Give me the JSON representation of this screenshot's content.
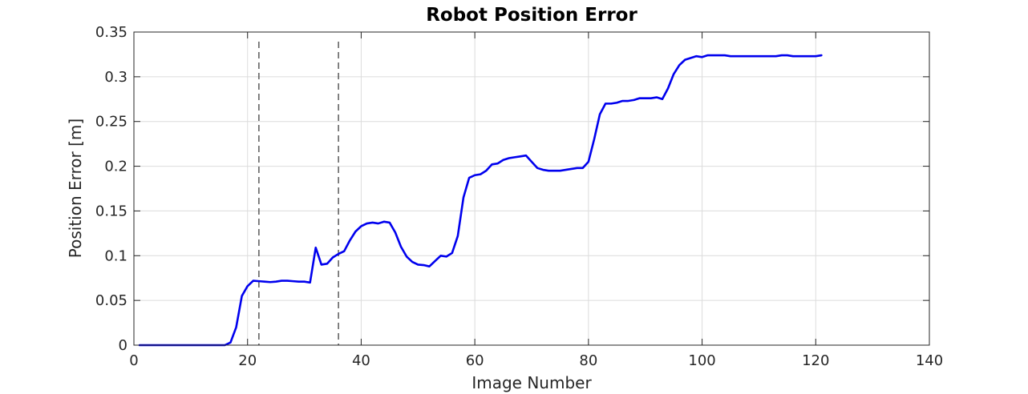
{
  "chart_data": {
    "type": "line",
    "title": "Robot Position Error",
    "xlabel": "Image Number",
    "ylabel": "Position Error [m]",
    "xlim": [
      0,
      140
    ],
    "ylim": [
      0,
      0.35
    ],
    "xticks": [
      0,
      20,
      40,
      60,
      80,
      100,
      120,
      140
    ],
    "yticks": [
      0,
      0.05,
      0.1,
      0.15,
      0.2,
      0.25,
      0.3,
      0.35
    ],
    "xtick_labels": [
      "0",
      "20",
      "40",
      "60",
      "80",
      "100",
      "120",
      "140"
    ],
    "ytick_labels": [
      "0",
      "0.05",
      "0.1",
      "0.15",
      "0.2",
      "0.25",
      "0.3",
      "0.35"
    ],
    "grid": true,
    "series": [
      {
        "color": "#0000ee",
        "x": [
          1,
          2,
          3,
          4,
          5,
          6,
          7,
          8,
          9,
          10,
          11,
          12,
          13,
          14,
          15,
          16,
          17,
          18,
          19,
          20,
          21,
          22,
          23,
          24,
          25,
          26,
          27,
          28,
          29,
          30,
          31,
          32,
          33,
          34,
          35,
          36,
          37,
          38,
          39,
          40,
          41,
          42,
          43,
          44,
          45,
          46,
          47,
          48,
          49,
          50,
          51,
          52,
          53,
          54,
          55,
          56,
          57,
          58,
          59,
          60,
          61,
          62,
          63,
          64,
          65,
          66,
          67,
          68,
          69,
          70,
          71,
          72,
          73,
          74,
          75,
          76,
          77,
          78,
          79,
          80,
          81,
          82,
          83,
          84,
          85,
          86,
          87,
          88,
          89,
          90,
          91,
          92,
          93,
          94,
          95,
          96,
          97,
          98,
          99,
          100,
          101,
          102,
          103,
          104,
          105,
          106,
          107,
          108,
          109,
          110,
          111,
          112,
          113,
          114,
          115,
          116,
          117,
          118,
          119,
          120,
          121
        ],
        "y": [
          0,
          0,
          0,
          0,
          0,
          0,
          0,
          0,
          0,
          0,
          0,
          0,
          0,
          0,
          0,
          0,
          0.003,
          0.02,
          0.055,
          0.066,
          0.072,
          0.0715,
          0.071,
          0.0705,
          0.071,
          0.072,
          0.072,
          0.0715,
          0.071,
          0.071,
          0.07,
          0.109,
          0.09,
          0.091,
          0.098,
          0.102,
          0.105,
          0.117,
          0.127,
          0.133,
          0.136,
          0.137,
          0.136,
          0.138,
          0.137,
          0.126,
          0.11,
          0.099,
          0.093,
          0.09,
          0.0895,
          0.088,
          0.094,
          0.1,
          0.099,
          0.103,
          0.122,
          0.165,
          0.187,
          0.19,
          0.191,
          0.195,
          0.202,
          0.203,
          0.207,
          0.209,
          0.21,
          0.211,
          0.212,
          0.205,
          0.198,
          0.196,
          0.195,
          0.195,
          0.195,
          0.196,
          0.197,
          0.198,
          0.198,
          0.205,
          0.23,
          0.258,
          0.27,
          0.27,
          0.271,
          0.273,
          0.273,
          0.274,
          0.276,
          0.276,
          0.276,
          0.277,
          0.275,
          0.287,
          0.303,
          0.313,
          0.319,
          0.321,
          0.323,
          0.322,
          0.324,
          0.324,
          0.324,
          0.324,
          0.323,
          0.323,
          0.323,
          0.323,
          0.323,
          0.323,
          0.323,
          0.323,
          0.323,
          0.324,
          0.324,
          0.323,
          0.323,
          0.323,
          0.323,
          0.323,
          0.324
        ]
      }
    ],
    "reference_lines": [
      {
        "x": 22,
        "style": "dashed"
      },
      {
        "x": 36,
        "style": "dashed"
      }
    ]
  }
}
